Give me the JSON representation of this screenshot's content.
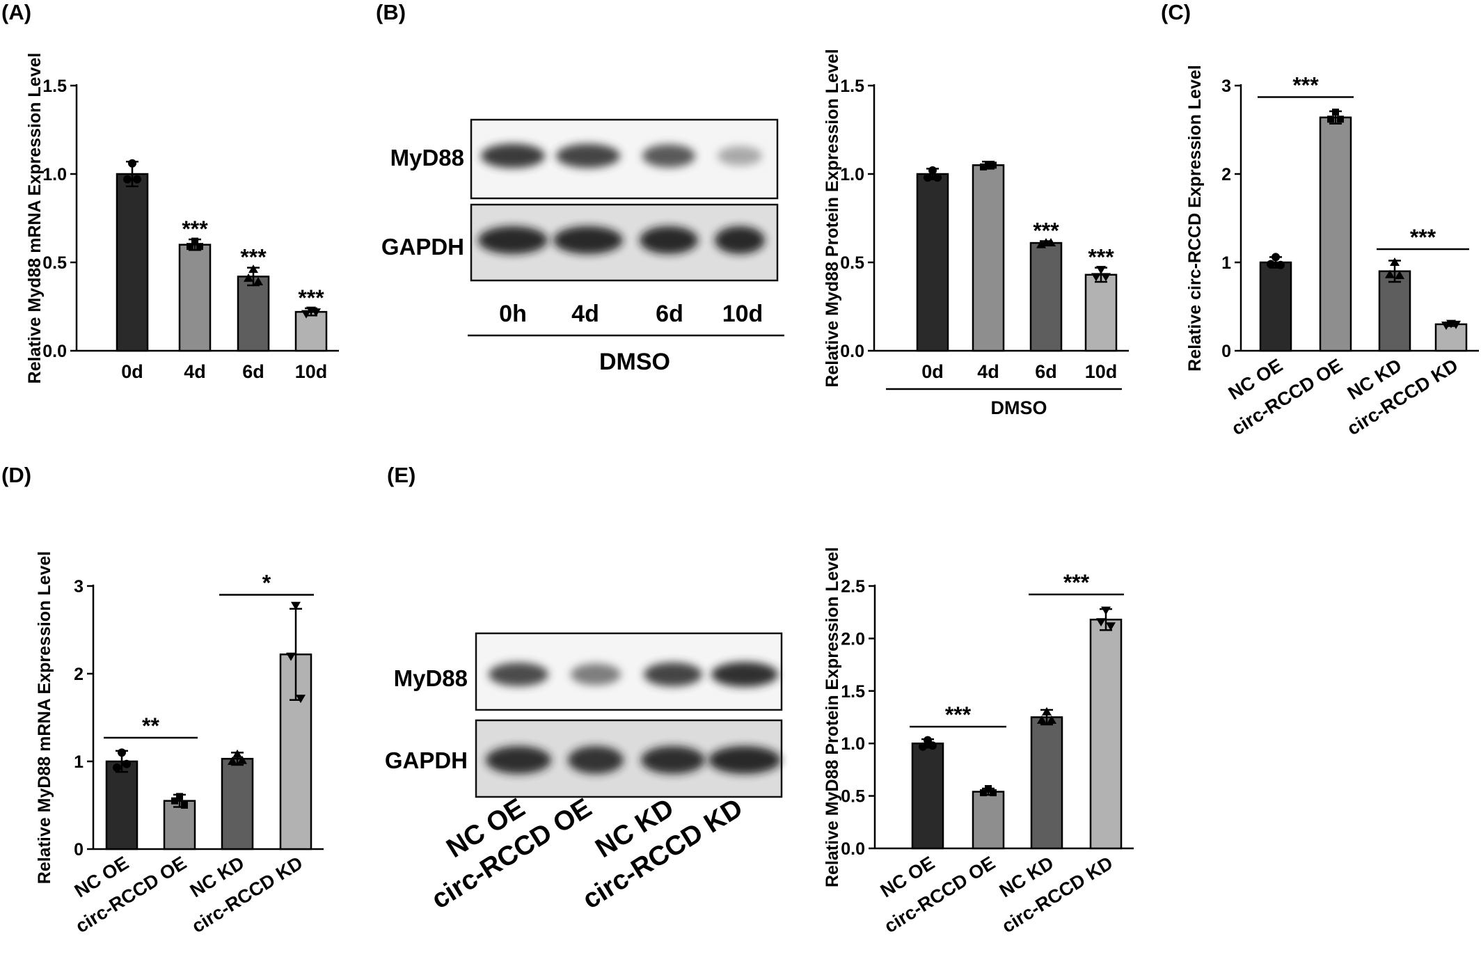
{
  "panel_labels": {
    "a": "(A)",
    "b": "(B)",
    "c": "(C)",
    "d": "(D)",
    "e": "(E)"
  },
  "chart_data": [
    {
      "id": "A",
      "type": "bar",
      "ylabel": "Relative Myd88 mRNA Expression Level",
      "categories": [
        "0d",
        "4d",
        "6d",
        "10d"
      ],
      "values": [
        1.0,
        0.6,
        0.42,
        0.22
      ],
      "errors": [
        0.07,
        0.03,
        0.05,
        0.02
      ],
      "points": [
        [
          1.06,
          0.97,
          0.97
        ],
        [
          0.62,
          0.59,
          0.59
        ],
        [
          0.46,
          0.41,
          0.39
        ],
        [
          0.23,
          0.21,
          0.22
        ]
      ],
      "colors": [
        "#2a2a2a",
        "#8e8e8e",
        "#5e5e5e",
        "#b2b2b2"
      ],
      "ylim": [
        0,
        1.5
      ],
      "yticks": [
        "0.0",
        "0.5",
        "1.0",
        "1.5"
      ],
      "yticks_values": [
        0,
        0.5,
        1.0,
        1.5
      ],
      "annotations": [
        {
          "category_index": 1,
          "text": "***"
        },
        {
          "category_index": 2,
          "text": "***"
        },
        {
          "category_index": 3,
          "text": "***"
        }
      ]
    },
    {
      "id": "B",
      "type": "bar",
      "ylabel": "Relative Myd88 Protein Expression Level",
      "categories": [
        "0d",
        "4d",
        "6d",
        "10d"
      ],
      "group_label": "DMSO",
      "values": [
        1.0,
        1.05,
        0.61,
        0.43
      ],
      "errors": [
        0.03,
        0.02,
        0.01,
        0.04
      ],
      "points": [
        [
          1.02,
          0.98,
          0.98
        ],
        [
          1.05,
          1.04,
          1.05
        ],
        [
          0.61,
          0.6,
          0.61
        ],
        [
          0.46,
          0.42,
          0.42
        ]
      ],
      "colors": [
        "#2a2a2a",
        "#8e8e8e",
        "#5e5e5e",
        "#b2b2b2"
      ],
      "ylim": [
        0,
        1.5
      ],
      "yticks": [
        "0.0",
        "0.5",
        "1.0",
        "1.5"
      ],
      "yticks_values": [
        0,
        0.5,
        1.0,
        1.5
      ],
      "annotations": [
        {
          "category_index": 2,
          "text": "***"
        },
        {
          "category_index": 3,
          "text": "***"
        }
      ]
    },
    {
      "id": "C",
      "type": "bar",
      "ylabel": "Relative circ-RCCD Expression Level",
      "categories": [
        "NC OE",
        "circ-RCCD OE",
        "NC KD",
        "circ-RCCD KD"
      ],
      "values": [
        1.0,
        2.64,
        0.9,
        0.3
      ],
      "errors": [
        0.06,
        0.07,
        0.12,
        0.02
      ],
      "points": [
        [
          1.06,
          0.98,
          0.97
        ],
        [
          2.7,
          2.62,
          2.62
        ],
        [
          1.0,
          0.86,
          0.85
        ],
        [
          0.31,
          0.29,
          0.3
        ]
      ],
      "colors": [
        "#2a2a2a",
        "#8e8e8e",
        "#5e5e5e",
        "#b2b2b2"
      ],
      "ylim": [
        0,
        3
      ],
      "yticks": [
        "0",
        "1",
        "2",
        "3"
      ],
      "yticks_values": [
        0,
        1,
        2,
        3
      ],
      "brackets": [
        {
          "from": 0,
          "to": 1,
          "text": "***",
          "y": 2.87
        },
        {
          "from": 2,
          "to": 3,
          "text": "***",
          "y": 1.15
        }
      ]
    },
    {
      "id": "D",
      "type": "bar",
      "ylabel": "Relative MyD88 mRNA Expression Level",
      "categories": [
        "NC OE",
        "circ-RCCD OE",
        "NC KD",
        "circ-RCCD KD"
      ],
      "values": [
        1.0,
        0.55,
        1.03,
        2.22
      ],
      "errors": [
        0.12,
        0.07,
        0.07,
        0.52
      ],
      "points": [
        [
          1.1,
          0.93,
          0.97
        ],
        [
          0.6,
          0.55,
          0.5
        ],
        [
          1.08,
          1.0,
          1.01
        ],
        [
          2.78,
          2.2,
          1.72
        ]
      ],
      "colors": [
        "#2a2a2a",
        "#8e8e8e",
        "#5e5e5e",
        "#b2b2b2"
      ],
      "ylim": [
        0,
        3
      ],
      "yticks": [
        "0",
        "1",
        "2",
        "3"
      ],
      "yticks_values": [
        0,
        1,
        2,
        3
      ],
      "brackets": [
        {
          "from": 0,
          "to": 1,
          "text": "**",
          "y": 1.27
        },
        {
          "from": 2,
          "to": 3,
          "text": "*",
          "y": 2.9
        }
      ]
    },
    {
      "id": "E",
      "type": "bar",
      "ylabel": "Relative MyD88 Protein Expression Level",
      "categories": [
        "NC OE",
        "circ-RCCD OE",
        "NC KD",
        "circ-RCCD KD"
      ],
      "values": [
        1.0,
        0.54,
        1.25,
        2.18
      ],
      "errors": [
        0.04,
        0.03,
        0.07,
        0.1
      ],
      "points": [
        [
          1.03,
          0.97,
          0.98
        ],
        [
          0.57,
          0.53,
          0.53
        ],
        [
          1.3,
          1.22,
          1.22
        ],
        [
          2.27,
          2.16,
          2.12
        ]
      ],
      "colors": [
        "#2a2a2a",
        "#8e8e8e",
        "#5e5e5e",
        "#b2b2b2"
      ],
      "ylim": [
        0,
        2.5
      ],
      "yticks": [
        "0.0",
        "0.5",
        "1.0",
        "1.5",
        "2.0",
        "2.5"
      ],
      "yticks_values": [
        0,
        0.5,
        1.0,
        1.5,
        2.0,
        2.5
      ],
      "brackets": [
        {
          "from": 0,
          "to": 1,
          "text": "***",
          "y": 1.16
        },
        {
          "from": 2,
          "to": 3,
          "text": "***",
          "y": 2.42
        }
      ]
    }
  ],
  "blot_b": {
    "rows": [
      "MyD88",
      "GAPDH"
    ],
    "lanes": [
      "0h",
      "4d",
      "6d",
      "10d"
    ],
    "group_label": "DMSO",
    "myd88_intensity": [
      0.92,
      0.88,
      0.78,
      0.35
    ],
    "gapdh_intensity": [
      0.98,
      0.98,
      0.98,
      0.98
    ]
  },
  "blot_e": {
    "rows": [
      "MyD88",
      "GAPDH"
    ],
    "lanes": [
      "NC OE",
      "circ-RCCD OE",
      "NC KD",
      "circ-RCCD KD"
    ],
    "myd88_intensity": [
      0.85,
      0.6,
      0.88,
      0.97
    ],
    "gapdh_intensity": [
      0.92,
      0.9,
      0.93,
      0.96
    ]
  }
}
